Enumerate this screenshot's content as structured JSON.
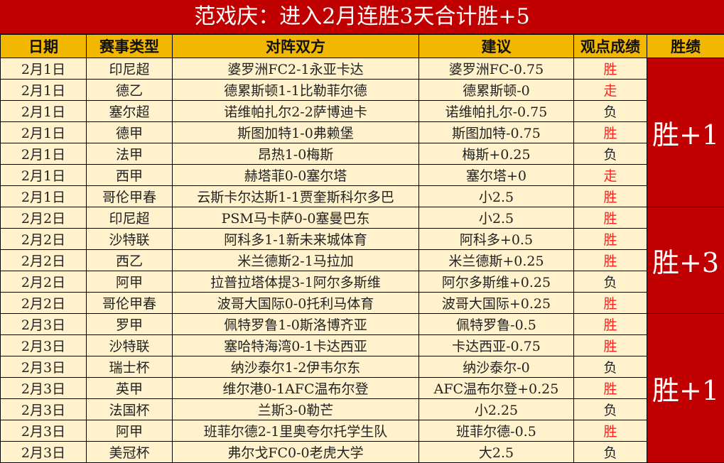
{
  "title": "范戏庆：进入2月连胜3天合计胜+5",
  "headers": [
    "日期",
    "赛事类型",
    "对阵双方",
    "建议",
    "观点成绩",
    "胜绩"
  ],
  "colors": {
    "title_bg": "#c00000",
    "header_bg": "#f2b700",
    "row_bg": "#fff2cc",
    "win_text": "#ff2020"
  },
  "rows": [
    {
      "date": "2月1日",
      "league": "印尼超",
      "match": "婆罗洲FC2-1永亚卡达",
      "tip": "婆罗洲FC-0.75",
      "result": "胜"
    },
    {
      "date": "2月1日",
      "league": "德乙",
      "match": "德累斯顿1-1比勒菲尔德",
      "tip": "德累斯顿-0",
      "result": "走"
    },
    {
      "date": "2月1日",
      "league": "塞尔超",
      "match": "诺维帕扎尔2-2萨博迪卡",
      "tip": "诺维帕扎尔-0.75",
      "result": "负"
    },
    {
      "date": "2月1日",
      "league": "德甲",
      "match": "斯图加特1-0弗赖堡",
      "tip": "斯图加特-0.75",
      "result": "胜"
    },
    {
      "date": "2月1日",
      "league": "法甲",
      "match": "昂热1-0梅斯",
      "tip": "梅斯+0.25",
      "result": "负"
    },
    {
      "date": "2月1日",
      "league": "西甲",
      "match": "赫塔菲0-0塞尔塔",
      "tip": "塞尔塔+0",
      "result": "走"
    },
    {
      "date": "2月1日",
      "league": "哥伦甲春",
      "match": "云斯卡尔达斯1-1贾奎斯科尔多巴",
      "tip": "小2.5",
      "result": "胜"
    },
    {
      "date": "2月2日",
      "league": "印尼超",
      "match": "PSM马卡萨0-0塞曼巴东",
      "tip": "小2.5",
      "result": "胜"
    },
    {
      "date": "2月2日",
      "league": "沙特联",
      "match": "阿科多1-1新未来城体育",
      "tip": "阿科多+0.5",
      "result": "胜"
    },
    {
      "date": "2月2日",
      "league": "西乙",
      "match": "米兰德斯2-1马拉加",
      "tip": "米兰德斯+0.25",
      "result": "胜"
    },
    {
      "date": "2月2日",
      "league": "阿甲",
      "match": "拉普拉塔体提3-1阿尔多斯维",
      "tip": "阿尔多斯维+0.25",
      "result": "负"
    },
    {
      "date": "2月2日",
      "league": "哥伦甲春",
      "match": "波哥大国际0-0托利马体育",
      "tip": "波哥大国际+0.25",
      "result": "胜"
    },
    {
      "date": "2月3日",
      "league": "罗甲",
      "match": "佩特罗鲁1-0斯洛博齐亚",
      "tip": "佩特罗鲁-0.5",
      "result": "胜"
    },
    {
      "date": "2月3日",
      "league": "沙特联",
      "match": "塞哈特海湾0-1卡达西亚",
      "tip": "卡达西亚-0.75",
      "result": "胜"
    },
    {
      "date": "2月3日",
      "league": "瑞士杯",
      "match": "纳沙泰尔1-2伊韦尔东",
      "tip": "纳沙泰尔-0",
      "result": "负"
    },
    {
      "date": "2月3日",
      "league": "英甲",
      "match": "维尔港0-1AFC温布尔登",
      "tip": "AFC温布尔登+0.25",
      "result": "胜"
    },
    {
      "date": "2月3日",
      "league": "法国杯",
      "match": "兰斯3-0勒芒",
      "tip": "小2.25",
      "result": "负"
    },
    {
      "date": "2月3日",
      "league": "阿甲",
      "match": "班菲尔德2-1里奥夸尔托学生队",
      "tip": "班菲尔德-0.5",
      "result": "胜"
    },
    {
      "date": "2月3日",
      "league": "美冠杯",
      "match": "弗尔戈FC0-0老虎大学",
      "tip": "大2.5",
      "result": "负"
    }
  ],
  "summaries": [
    {
      "label": "胜+1",
      "span": 7
    },
    {
      "label": "胜+3",
      "span": 5
    },
    {
      "label": "胜+1",
      "span": 7
    }
  ]
}
